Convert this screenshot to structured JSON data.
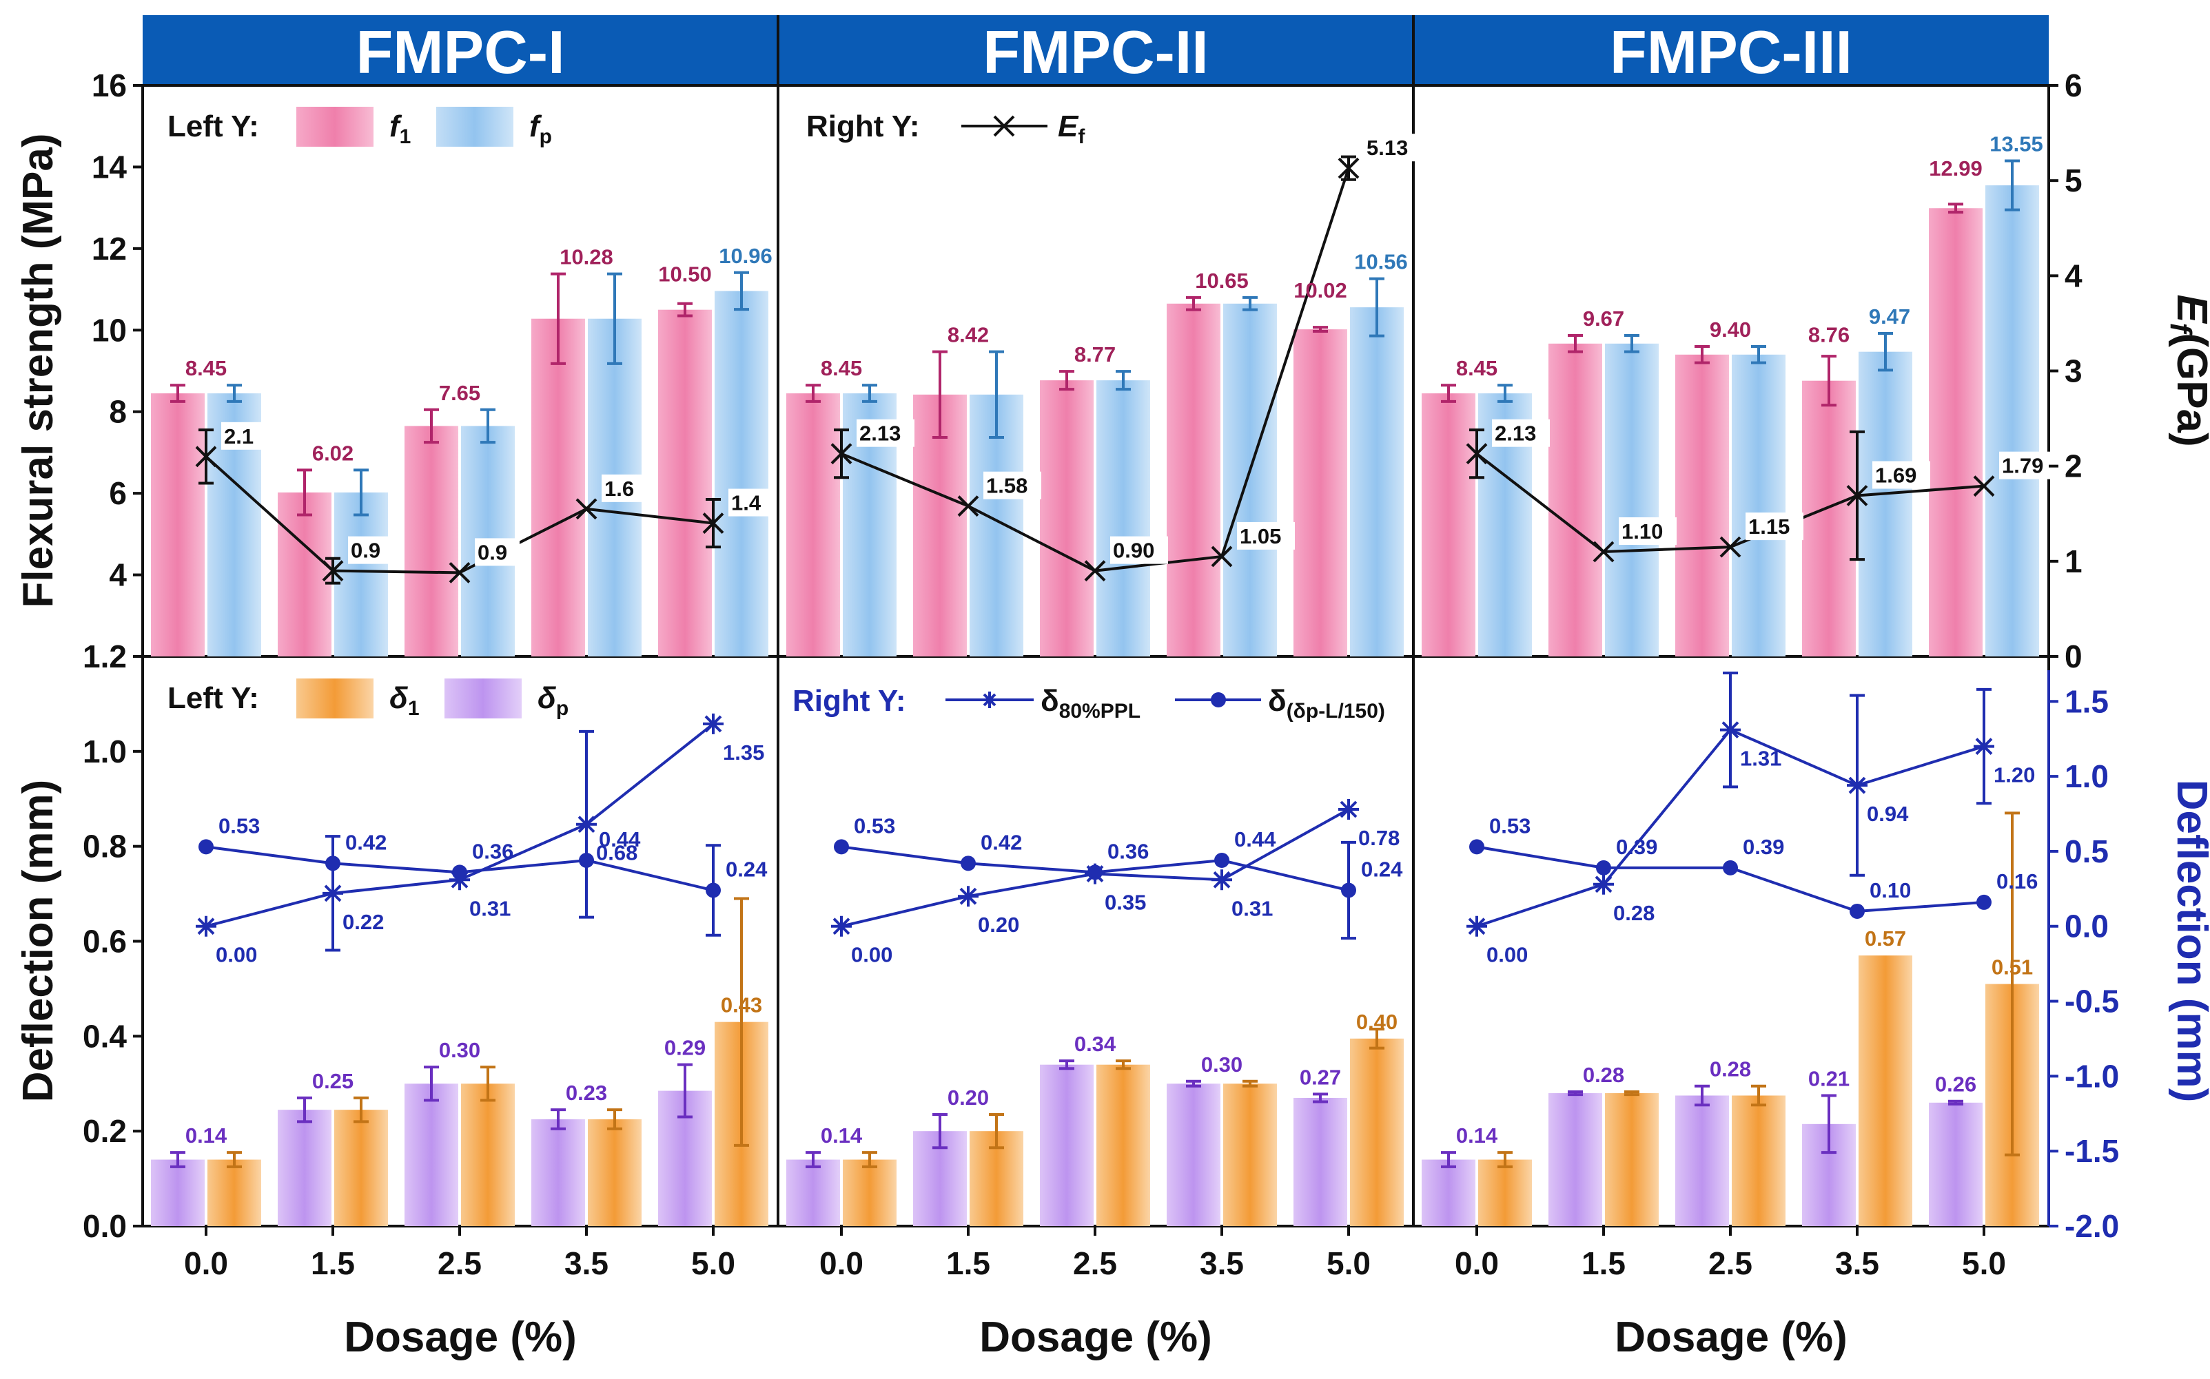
{
  "chart_data": {
    "type": "bar",
    "panel_titles": [
      "FMPC-I",
      "FMPC-II",
      "FMPC-III"
    ],
    "categories": [
      "0.0",
      "1.5",
      "2.5",
      "3.5",
      "5.0"
    ],
    "xlabel": "Dosage (%)",
    "top": {
      "ylabel_left": "Flexural strength (MPa)",
      "ylabel_right": "E",
      "ylabel_right_sub": "f",
      "ylabel_right_unit": "(GPa)",
      "ylim_left": [
        2,
        16
      ],
      "yticks_left": [
        "2",
        "4",
        "6",
        "8",
        "10",
        "12",
        "14",
        "16"
      ],
      "ylim_right": [
        0,
        6
      ],
      "yticks_right": [
        "0",
        "1",
        "2",
        "3",
        "4",
        "5",
        "6"
      ],
      "legend_left": {
        "prefix": "Left Y:",
        "f1_label": "f",
        "f1_sub": "1",
        "fp_label": "f",
        "fp_sub": "p"
      },
      "legend_right": {
        "prefix": "Right Y:",
        "ef_label": "E",
        "ef_sub": "f"
      },
      "panels": [
        {
          "f1": [
            8.45,
            6.02,
            7.65,
            10.28,
            10.5
          ],
          "f1_err": [
            0.2,
            0.55,
            0.4,
            1.1,
            0.15
          ],
          "f1_labels": [
            "8.45",
            "6.02",
            "7.65",
            "10.28",
            "10.50"
          ],
          "fp": [
            8.45,
            6.02,
            7.65,
            10.28,
            10.96
          ],
          "fp_err": [
            0.2,
            0.55,
            0.4,
            1.1,
            0.45
          ],
          "fp_labels": [
            "",
            "",
            "",
            "",
            "10.96"
          ],
          "ef": [
            2.1,
            0.9,
            0.88,
            1.55,
            1.4
          ],
          "ef_err": [
            0.28,
            0.13,
            0.0,
            0.0,
            0.25
          ],
          "ef_labels": [
            "2.1",
            "0.9",
            "0.9",
            "1.6",
            "1.4"
          ]
        },
        {
          "f1": [
            8.45,
            8.42,
            8.77,
            10.65,
            10.02
          ],
          "f1_err": [
            0.2,
            1.05,
            0.22,
            0.15,
            0.05
          ],
          "f1_labels": [
            "8.45",
            "8.42",
            "8.77",
            "10.65",
            "10.02"
          ],
          "fp": [
            8.45,
            8.42,
            8.77,
            10.65,
            10.56
          ],
          "fp_err": [
            0.2,
            1.05,
            0.22,
            0.15,
            0.7
          ],
          "fp_labels": [
            "",
            "",
            "",
            "",
            "10.56"
          ],
          "ef": [
            2.13,
            1.58,
            0.9,
            1.05,
            5.13
          ],
          "ef_err": [
            0.25,
            0.0,
            0.0,
            0.0,
            0.12
          ],
          "ef_labels": [
            "2.13",
            "1.58",
            "0.90",
            "1.05",
            "5.13"
          ]
        },
        {
          "f1": [
            8.45,
            9.67,
            9.4,
            8.76,
            12.99
          ],
          "f1_err": [
            0.2,
            0.2,
            0.2,
            0.6,
            0.1
          ],
          "f1_labels": [
            "8.45",
            "9.67",
            "9.40",
            "8.76",
            "12.99"
          ],
          "fp": [
            8.45,
            9.67,
            9.4,
            9.47,
            13.55
          ],
          "fp_err": [
            0.2,
            0.2,
            0.2,
            0.45,
            0.6
          ],
          "fp_labels": [
            "",
            "",
            "",
            "9.47",
            "13.55"
          ],
          "ef": [
            2.13,
            1.1,
            1.15,
            1.69,
            1.79
          ],
          "ef_err": [
            0.25,
            0.0,
            0.0,
            0.67,
            0.0
          ],
          "ef_labels": [
            "2.13",
            "1.10",
            "1.15",
            "1.69",
            "1.79"
          ]
        }
      ]
    },
    "bottom": {
      "ylabel_left": "Deflection (mm)",
      "ylabel_right": "Deflection (mm)",
      "ylim_left": [
        0.0,
        1.2
      ],
      "yticks_left": [
        "0.0",
        "0.2",
        "0.4",
        "0.6",
        "0.8",
        "1.0",
        "1.2"
      ],
      "ylim_right": [
        -2.0,
        1.8
      ],
      "yticks_right": [
        "-2.0",
        "-1.5",
        "-1.0",
        "-0.5",
        "0.0",
        "0.5",
        "1.0",
        "1.5"
      ],
      "legend_left": {
        "prefix": "Left Y:",
        "d1_label": "δ",
        "d1_sub": "1",
        "dp_label": "δ",
        "dp_sub": "p"
      },
      "legend_right": {
        "prefix": "Right Y:",
        "s80_label": "δ",
        "s80_sub": "80%PPL",
        "sdp_label": "δ",
        "sdp_sub": "(δp-L/150)"
      },
      "panels": [
        {
          "dp": [
            0.14,
            0.245,
            0.3,
            0.225,
            0.285
          ],
          "dp_err": [
            0.015,
            0.025,
            0.035,
            0.02,
            0.055
          ],
          "dp_labels": [
            "0.14",
            "0.25",
            "0.30",
            "0.23",
            "0.29"
          ],
          "d1": [
            0.14,
            0.245,
            0.3,
            0.225,
            0.43
          ],
          "d1_err": [
            0.015,
            0.025,
            0.035,
            0.02,
            0.26
          ],
          "d1_labels": [
            "",
            "",
            "",
            "",
            "0.43"
          ],
          "s80": [
            0.0,
            0.22,
            0.31,
            0.68,
            1.35
          ],
          "s80_err": [
            0.0,
            0.38,
            0.0,
            0.62,
            0.0
          ],
          "s80_labels": [
            "0.00",
            "0.22",
            "0.31",
            "0.68",
            "1.35"
          ],
          "sdp": [
            0.53,
            0.42,
            0.36,
            0.44,
            0.24
          ],
          "sdp_err": [
            0.0,
            0.0,
            0.0,
            0.0,
            0.3
          ],
          "sdp_labels": [
            "0.53",
            "0.42",
            "0.36",
            "0.44",
            "0.24"
          ]
        },
        {
          "dp": [
            0.14,
            0.2,
            0.34,
            0.3,
            0.27
          ],
          "dp_err": [
            0.015,
            0.035,
            0.008,
            0.005,
            0.008
          ],
          "dp_labels": [
            "0.14",
            "0.20",
            "0.34",
            "0.30",
            "0.27"
          ],
          "d1": [
            0.14,
            0.2,
            0.34,
            0.3,
            0.395
          ],
          "d1_err": [
            0.015,
            0.035,
            0.008,
            0.005,
            0.02
          ],
          "d1_labels": [
            "",
            "",
            "",
            "",
            "0.40"
          ],
          "s80": [
            0.0,
            0.2,
            0.35,
            0.31,
            0.78
          ],
          "s80_err": [
            0.0,
            0.0,
            0.0,
            0.0,
            0.0
          ],
          "s80_labels": [
            "0.00",
            "0.20",
            "0.35",
            "0.31",
            "0.78"
          ],
          "sdp": [
            0.53,
            0.42,
            0.36,
            0.44,
            0.24
          ],
          "sdp_err": [
            0.0,
            0.0,
            0.0,
            0.0,
            0.32
          ],
          "sdp_labels": [
            "0.53",
            "0.42",
            "0.36",
            "0.44",
            "0.24"
          ]
        },
        {
          "dp": [
            0.14,
            0.28,
            0.275,
            0.215,
            0.26
          ],
          "dp_err": [
            0.015,
            0.003,
            0.02,
            0.06,
            0.003
          ],
          "dp_labels": [
            "0.14",
            "0.28",
            "0.28",
            "0.21",
            "0.26"
          ],
          "d1": [
            0.14,
            0.28,
            0.275,
            0.57,
            0.51
          ],
          "d1_err": [
            0.015,
            0.003,
            0.02,
            0.0,
            0.36
          ],
          "d1_labels": [
            "",
            "",
            "",
            "0.57",
            "0.51"
          ],
          "s80": [
            0.0,
            0.28,
            1.31,
            0.94,
            1.2
          ],
          "s80_err": [
            0.0,
            0.0,
            0.38,
            0.6,
            0.38
          ],
          "s80_labels": [
            "0.00",
            "0.28",
            "1.31",
            "0.94",
            "1.20"
          ],
          "sdp": [
            0.53,
            0.39,
            0.39,
            0.1,
            0.16
          ],
          "sdp_err": [
            0.0,
            0.0,
            0.0,
            0.0,
            0.0
          ],
          "sdp_labels": [
            "0.53",
            "0.39",
            "0.39",
            "0.10",
            "0.16"
          ]
        }
      ]
    },
    "colors": {
      "header": "#0a5bb5",
      "pink": "#ef82ad",
      "pink_err": "#b0256a",
      "pink_label": "#a0215a",
      "blue_bar": "#9cc9f0",
      "blue_err": "#2f78b8",
      "blue_label": "#2f78b8",
      "purple": "#c49cf0",
      "purple_err": "#6a2fc0",
      "purple_label": "#6a2fc0",
      "orange": "#f5a74c",
      "orange_err": "#c27417",
      "orange_label": "#c27417",
      "line_black": "#111111",
      "line_blue": "#1f2db0"
    }
  }
}
